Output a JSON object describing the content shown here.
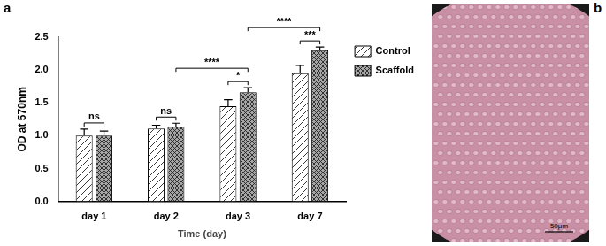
{
  "panel_labels": [
    "a",
    "b"
  ],
  "chart_data": {
    "type": "bar",
    "x_label": "Time (day)",
    "y_label": "OD at 570nm",
    "categories": [
      "day 1",
      "day 2",
      "day 3",
      "day 7"
    ],
    "series": [
      {
        "name": "Control",
        "color": "#ffffff",
        "values": [
          1.0,
          1.11,
          1.45,
          1.95
        ],
        "errors": [
          0.1,
          0.05,
          0.1,
          0.12
        ]
      },
      {
        "name": "Scaffold",
        "color": "#a6a6a6",
        "values": [
          1.0,
          1.14,
          1.66,
          2.3
        ],
        "errors": [
          0.07,
          0.05,
          0.07,
          0.05
        ]
      }
    ],
    "ylim": [
      0,
      2.5
    ],
    "yticks": [
      {
        "value": 0,
        "label": "0.0"
      },
      0.5,
      {
        "value": 1,
        "label": "1.0"
      },
      1.5,
      {
        "value": 2,
        "label": "2.0"
      },
      2.5
    ],
    "grid": false,
    "legend": "upper right",
    "annotations": [
      {
        "text": "ns",
        "between": [
          {
            "category": "day 1",
            "series": "Control"
          },
          {
            "category": "day 1",
            "series": "Scaffold"
          }
        ]
      },
      {
        "text": "ns",
        "between": [
          {
            "category": "day 2",
            "series": "Control"
          },
          {
            "category": "day 2",
            "series": "Scaffold"
          }
        ]
      },
      {
        "text": "*",
        "between": [
          {
            "category": "day 3",
            "series": "Control"
          },
          {
            "category": "day 3",
            "series": "Scaffold"
          }
        ]
      },
      {
        "text": "***",
        "between": [
          {
            "category": "day 7",
            "series": "Control"
          },
          {
            "category": "day 7",
            "series": "Scaffold"
          }
        ]
      },
      {
        "text": "****",
        "between": [
          {
            "category": "day 2",
            "series": "Scaffold"
          },
          {
            "category": "day 3",
            "series": "Scaffold"
          }
        ]
      },
      {
        "text": "****",
        "between": [
          {
            "category": "day 3",
            "series": "Scaffold"
          },
          {
            "category": "day 7",
            "series": "Scaffold"
          }
        ]
      }
    ]
  },
  "image": {
    "scale_bar_label": "50μm"
  }
}
